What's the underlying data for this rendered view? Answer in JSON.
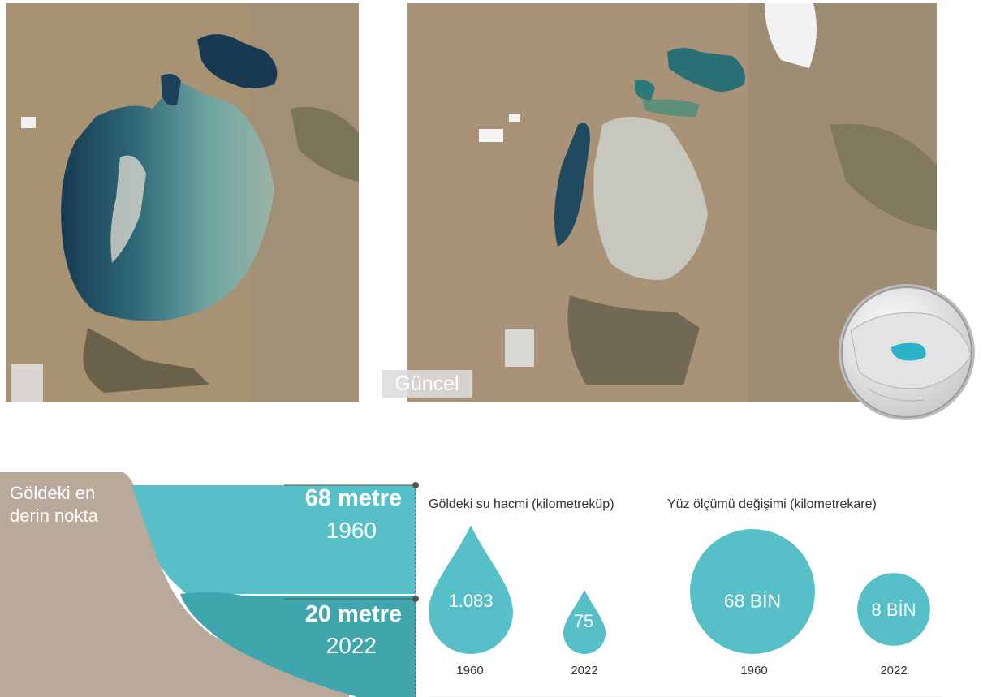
{
  "photos": {
    "current_label": "Güncel"
  },
  "depth": {
    "heading_line1": "Göldeki en",
    "heading_line2": "derin nokta",
    "past_value": "68 metre",
    "past_year": "1960",
    "now_value": "20 metre",
    "now_year": "2022"
  },
  "volume_chart": {
    "title": "Göldeki su hacmi (kilometreküp)",
    "items": [
      {
        "value_label": "1.083",
        "year": "1960"
      },
      {
        "value_label": "75",
        "year": "2022"
      }
    ]
  },
  "area_chart": {
    "title": "Yüz ölçümü değişimi (kilometrekare)",
    "items": [
      {
        "value_label": "68 BİN",
        "year": "1960"
      },
      {
        "value_label": "8 BİN",
        "year": "2022"
      }
    ]
  },
  "chart_data": [
    {
      "type": "bubble",
      "title": "Göldeki su hacmi (kilometreküp)",
      "categories": [
        "1960",
        "2022"
      ],
      "values": [
        1083,
        75
      ]
    },
    {
      "type": "bubble",
      "title": "Yüz ölçümü değişimi (kilometrekare)",
      "categories": [
        "1960",
        "2022"
      ],
      "values": [
        68000,
        8000
      ]
    },
    {
      "type": "area",
      "title": "Göldeki en derin nokta",
      "categories": [
        "1960",
        "2022"
      ],
      "values": [
        68,
        20
      ]
    }
  ],
  "colors": {
    "water_teal": "#56bfc8",
    "water_deep": "#3fa6ae",
    "ground": "#b9a99a",
    "sea_dark": "#1c3f5a"
  }
}
